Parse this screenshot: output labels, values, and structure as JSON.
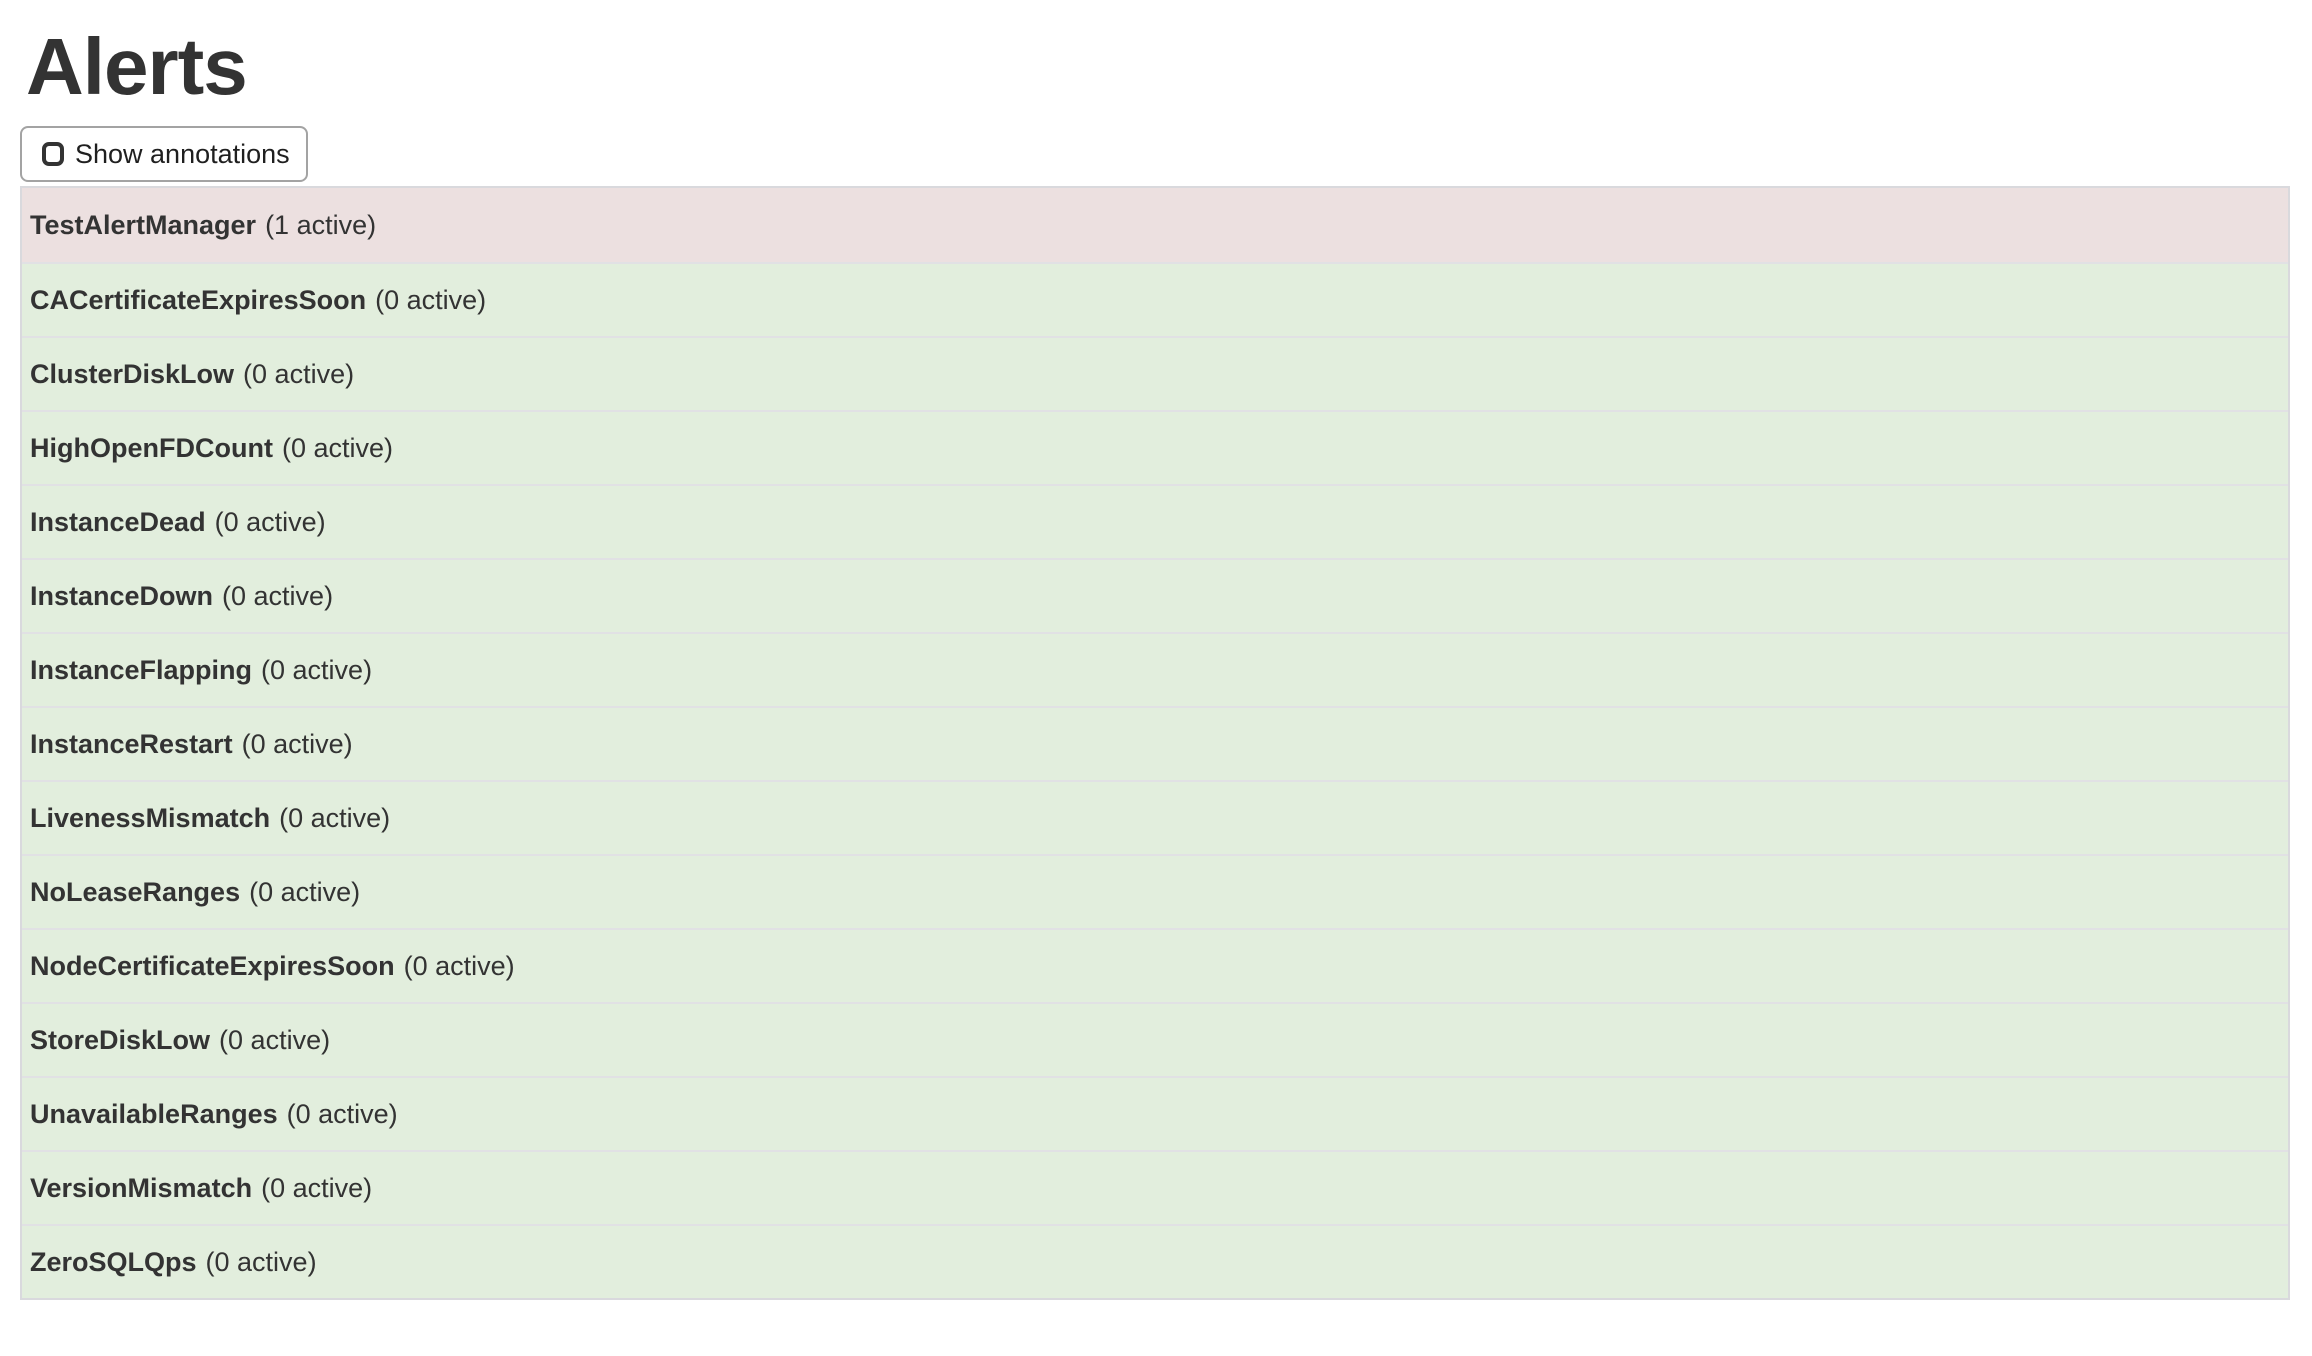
{
  "page": {
    "title": "Alerts"
  },
  "toolbar": {
    "show_annotations_label": "Show annotations",
    "checkbox_checked": false
  },
  "alerts": [
    {
      "name": "TestAlertManager",
      "count_text": "(1 active)",
      "active": 1,
      "state": "firing"
    },
    {
      "name": "CACertificateExpiresSoon",
      "count_text": "(0 active)",
      "active": 0,
      "state": "inactive"
    },
    {
      "name": "ClusterDiskLow",
      "count_text": "(0 active)",
      "active": 0,
      "state": "inactive"
    },
    {
      "name": "HighOpenFDCount",
      "count_text": "(0 active)",
      "active": 0,
      "state": "inactive"
    },
    {
      "name": "InstanceDead",
      "count_text": "(0 active)",
      "active": 0,
      "state": "inactive"
    },
    {
      "name": "InstanceDown",
      "count_text": "(0 active)",
      "active": 0,
      "state": "inactive"
    },
    {
      "name": "InstanceFlapping",
      "count_text": "(0 active)",
      "active": 0,
      "state": "inactive"
    },
    {
      "name": "InstanceRestart",
      "count_text": "(0 active)",
      "active": 0,
      "state": "inactive"
    },
    {
      "name": "LivenessMismatch",
      "count_text": "(0 active)",
      "active": 0,
      "state": "inactive"
    },
    {
      "name": "NoLeaseRanges",
      "count_text": "(0 active)",
      "active": 0,
      "state": "inactive"
    },
    {
      "name": "NodeCertificateExpiresSoon",
      "count_text": "(0 active)",
      "active": 0,
      "state": "inactive"
    },
    {
      "name": "StoreDiskLow",
      "count_text": "(0 active)",
      "active": 0,
      "state": "inactive"
    },
    {
      "name": "UnavailableRanges",
      "count_text": "(0 active)",
      "active": 0,
      "state": "inactive"
    },
    {
      "name": "VersionMismatch",
      "count_text": "(0 active)",
      "active": 0,
      "state": "inactive"
    },
    {
      "name": "ZeroSQLQps",
      "count_text": "(0 active)",
      "active": 0,
      "state": "inactive"
    }
  ],
  "colors": {
    "firing_row_bg": "#ece0e0",
    "inactive_row_bg": "#e2eedd",
    "row_separator": "#e1e1e4",
    "table_border": "#d9d9dd",
    "text": "#333333"
  }
}
